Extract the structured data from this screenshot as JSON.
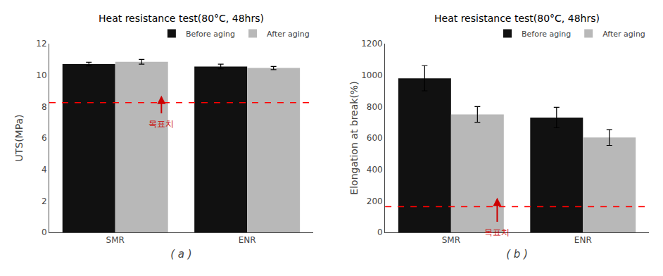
{
  "chart_data": [
    {
      "type": "bar",
      "title": "Heat resistance test(80°C, 48hrs)",
      "categories": [
        "SMR",
        "ENR"
      ],
      "series": [
        {
          "name": "Before aging",
          "color": "#111111",
          "values": [
            10.7,
            10.55
          ],
          "errors": [
            0.12,
            0.15
          ]
        },
        {
          "name": "After aging",
          "color": "#b8b8b8",
          "values": [
            10.85,
            10.45
          ],
          "errors": [
            0.15,
            0.1
          ]
        }
      ],
      "ylabel": "UTS(MPa)",
      "xlabel": "( a )",
      "ylim": [
        0,
        12
      ],
      "yticks": [
        0,
        2,
        4,
        6,
        8,
        10,
        12
      ],
      "grid": false,
      "legend": "upper right",
      "target_line": {
        "value": 8.25,
        "color": "#ff0000"
      },
      "annotations": [
        {
          "text": "목표치",
          "x": 0.35,
          "y": 7.3,
          "color": "#cc0000",
          "arrow": {
            "from": 7.5,
            "to": 8.7,
            "color": "#cc0000"
          }
        }
      ]
    },
    {
      "type": "bar",
      "title": "Heat resistance test(80°C, 48hrs)",
      "categories": [
        "SMR",
        "ENR"
      ],
      "series": [
        {
          "name": "Before aging",
          "color": "#111111",
          "values": [
            980,
            730
          ],
          "errors": [
            80,
            65
          ]
        },
        {
          "name": "After aging",
          "color": "#b8b8b8",
          "values": [
            750,
            603
          ],
          "errors": [
            50,
            50
          ]
        }
      ],
      "ylabel": "Elongation at break(%)",
      "xlabel": "( b )",
      "ylim": [
        0,
        1200
      ],
      "yticks": [
        0,
        200,
        400,
        600,
        800,
        1000,
        1200
      ],
      "grid": false,
      "legend": "upper right",
      "target_line": {
        "value": 163,
        "color": "#ff0000"
      },
      "annotations": [
        {
          "text": "목표치",
          "x": 0.35,
          "y": 40,
          "color": "#cc0000",
          "arrow": {
            "from": 60,
            "to": 220,
            "color": "#cc0000"
          }
        }
      ]
    }
  ]
}
